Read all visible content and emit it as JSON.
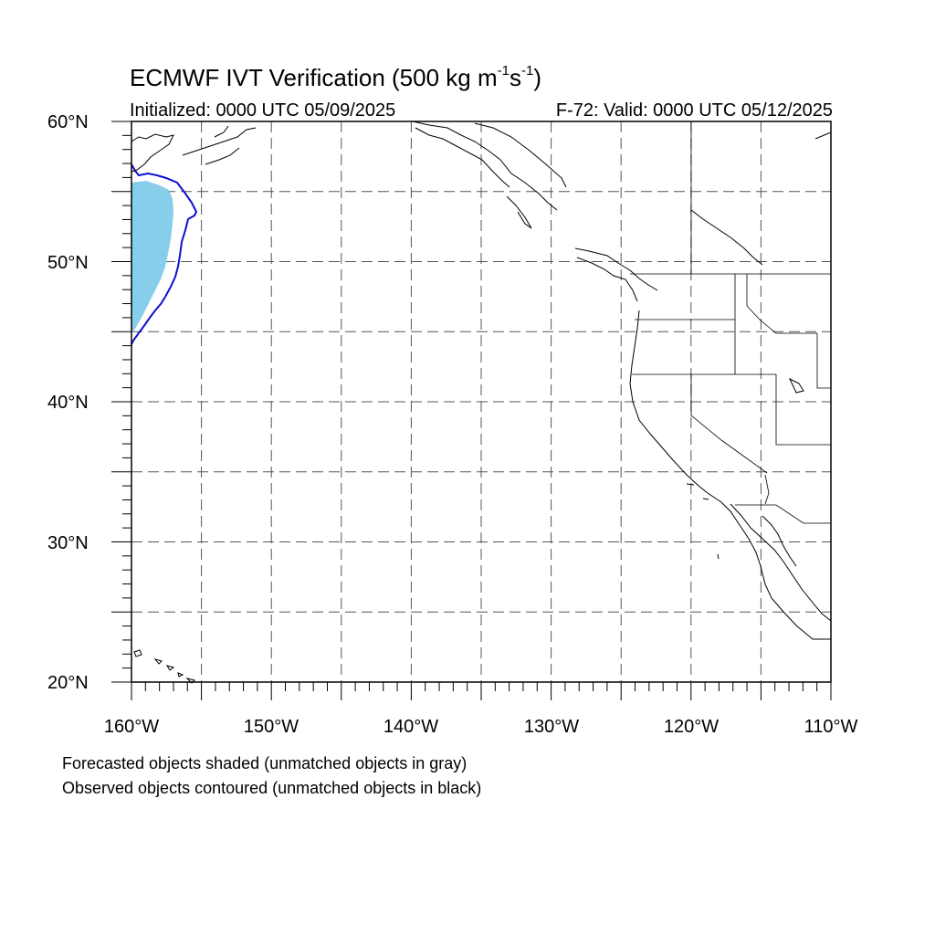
{
  "title": {
    "main": "ECMWF IVT Verification (500 kg m",
    "exp1": "-1",
    "mid": "s",
    "exp2": "-1",
    "close": ")"
  },
  "subtitle": {
    "left": "Initialized: 0000 UTC 05/09/2025",
    "right": "F-72: Valid: 0000 UTC 05/12/2025"
  },
  "axes": {
    "lat_labels": [
      "60°N",
      "50°N",
      "40°N",
      "30°N",
      "20°N"
    ],
    "lon_labels": [
      "160°W",
      "150°W",
      "140°W",
      "130°W",
      "120°W",
      "110°W"
    ],
    "lat_range": [
      20,
      60
    ],
    "lon_range": [
      -160,
      -110
    ],
    "grid": "dashed every 5 degrees"
  },
  "legend": {
    "line1": "Forecasted objects shaded (unmatched objects in gray)",
    "line2": "Observed objects contoured (unmatched objects in black)"
  },
  "colors": {
    "forecast_fill": "#87ceeb",
    "observed_contour": "#1010d0",
    "coastline": "#000000",
    "grid": "#555555"
  }
}
